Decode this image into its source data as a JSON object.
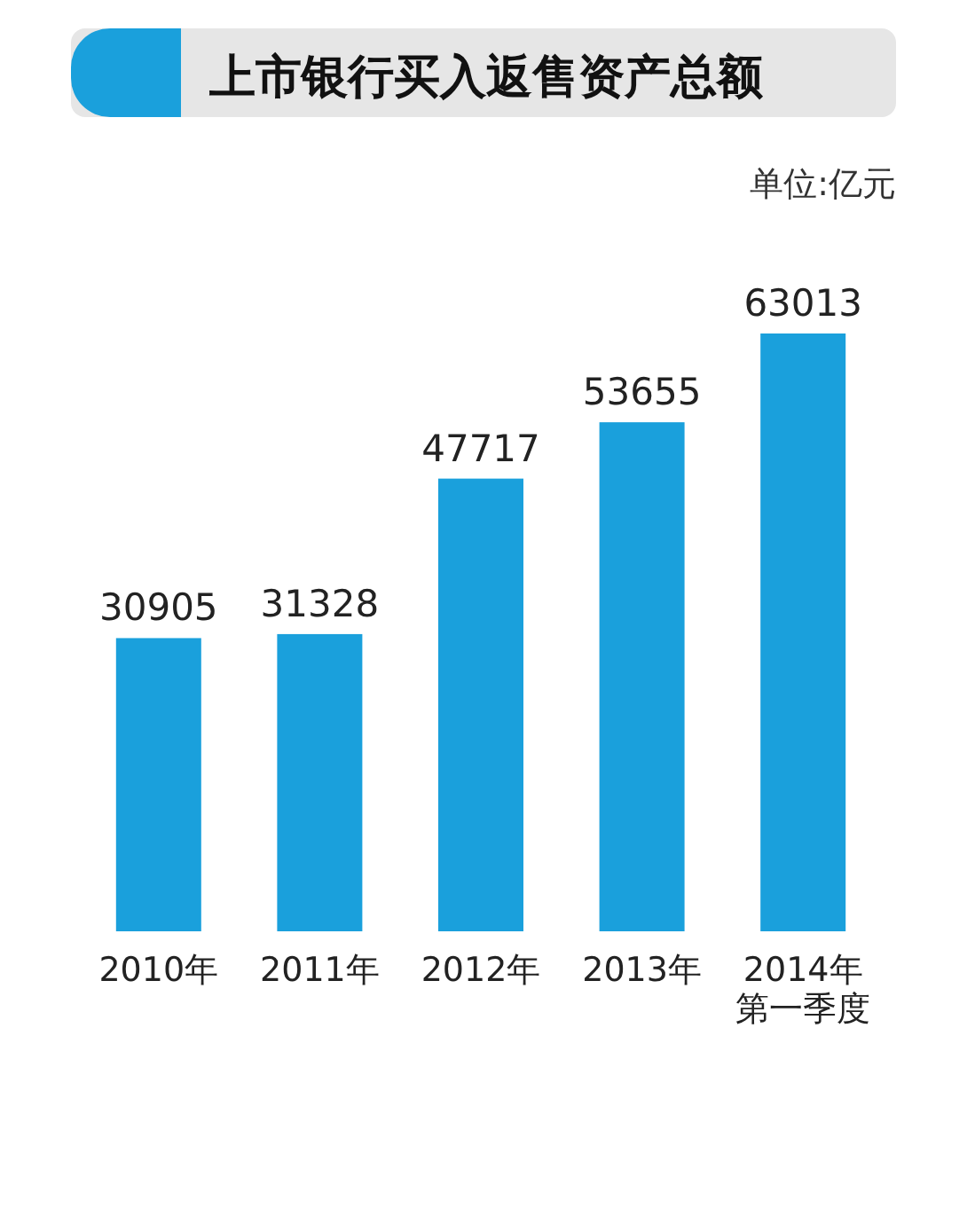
{
  "chart_data": {
    "type": "bar",
    "title": "上市银行买入返售资产总额",
    "annotations": [
      "单位:亿元"
    ],
    "categories": [
      "2010年",
      "2011年",
      "2012年",
      "2013年",
      "2014年第一季度"
    ],
    "values": [
      30905,
      31328,
      47717,
      53655,
      63013
    ],
    "color": "#1aa0dc",
    "data_labels": true
  }
}
